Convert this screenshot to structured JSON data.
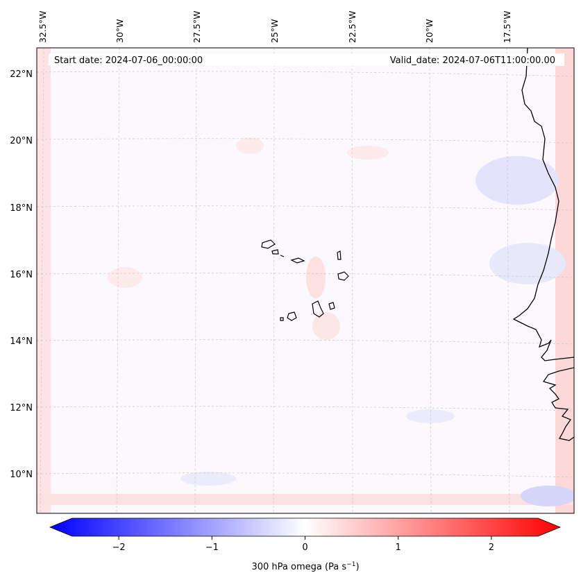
{
  "map": {
    "start_date": "Start date: 2024-07-06_00:00:00",
    "valid_date": "Valid_date: 2024-07-06T11:00:00.00",
    "lon_labels": [
      "32.5°W",
      "30°W",
      "27.5°W",
      "25°W",
      "22.5°W",
      "20°W",
      "17.5°W"
    ],
    "lat_labels": [
      "22°N",
      "20°N",
      "18°N",
      "16°N",
      "14°N",
      "12°N",
      "10°N"
    ],
    "projection_grid": "dashed gray graticule",
    "field": "300 hPa omega",
    "features": [
      "Cape Verde islands",
      "West African coastline"
    ]
  },
  "colorbar": {
    "label_prefix": "300 hPa omega (Pa s",
    "label_exp": "−1",
    "label_suffix": ")",
    "ticks": [
      "−2",
      "−1",
      "0",
      "1",
      "2"
    ],
    "tick_values": [
      -2,
      -1,
      0,
      1,
      2
    ],
    "range": [
      -2.5,
      2.5
    ],
    "cmap": "bwr",
    "colors": {
      "min": "#0000ff",
      "mid": "#ffffff",
      "max": "#ff0000"
    }
  }
}
